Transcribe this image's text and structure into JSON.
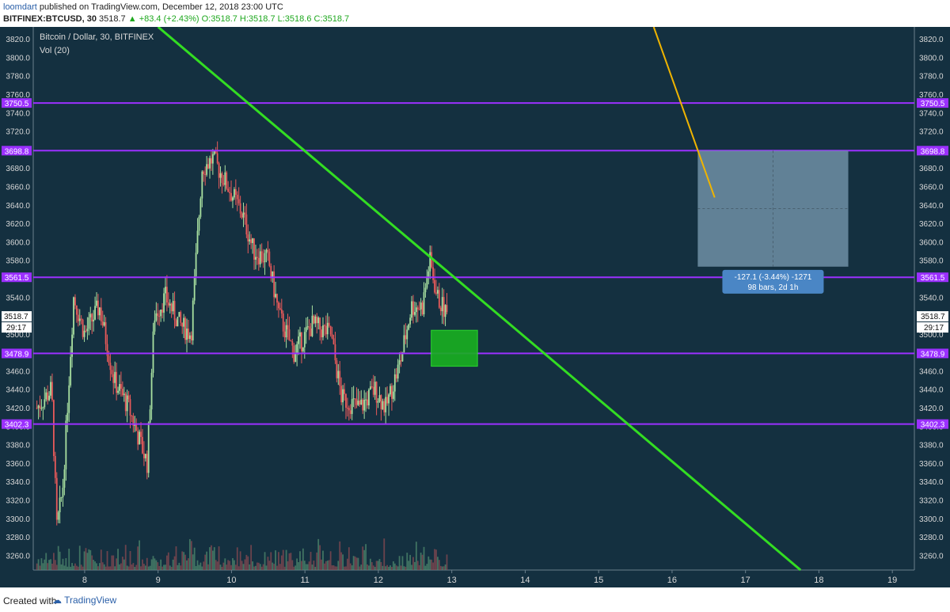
{
  "header": {
    "author": "loomdart",
    "published": "published on TradingView.com, December 12, 2018 23:00 UTC",
    "symbol": "BITFINEX:BTCUSD, 30",
    "last": "3518.7",
    "change": "+83.4 (+2.43%)",
    "ohlc": "O:3518.7 H:3518.7 L:3518.6 C:3518.7"
  },
  "chart_data": {
    "type": "candlestick",
    "title": "Bitcoin / Dollar, 30, BITFINEX",
    "indicator": "Vol (20)",
    "ylim": [
      3244,
      3833
    ],
    "y_ticks": [
      3260,
      3280,
      3300,
      3320,
      3340,
      3360,
      3380,
      3400,
      3420,
      3440,
      3460,
      3480,
      3500,
      3520,
      3540,
      3560,
      3580,
      3600,
      3620,
      3640,
      3660,
      3680,
      3700,
      3720,
      3740,
      3760,
      3780,
      3800,
      3820
    ],
    "x_ticks": [
      "8",
      "9",
      "10",
      "11",
      "12",
      "13",
      "14",
      "15",
      "16",
      "17",
      "18",
      "19"
    ],
    "x_range_days": [
      7.3,
      19.3
    ],
    "grid": false,
    "horizontal_levels": [
      {
        "label": "3750.5",
        "value": 3750.5
      },
      {
        "label": "3698.8",
        "value": 3698.8
      },
      {
        "label": "3561.5",
        "value": 3561.5
      },
      {
        "label": "3478.9",
        "value": 3478.9
      },
      {
        "label": "3402.3",
        "value": 3402.3
      }
    ],
    "trendline": {
      "color": "#33dd22",
      "from": {
        "day": 9.0,
        "price": 3833
      },
      "to": {
        "day": 17.75,
        "price": 3244
      }
    },
    "price_path": [
      {
        "day": 7.35,
        "price": 3420
      },
      {
        "day": 7.55,
        "price": 3440
      },
      {
        "day": 7.62,
        "price": 3290
      },
      {
        "day": 7.7,
        "price": 3330
      },
      {
        "day": 7.85,
        "price": 3540
      },
      {
        "day": 8.0,
        "price": 3500
      },
      {
        "day": 8.2,
        "price": 3530
      },
      {
        "day": 8.4,
        "price": 3450
      },
      {
        "day": 8.6,
        "price": 3420
      },
      {
        "day": 8.85,
        "price": 3360
      },
      {
        "day": 8.95,
        "price": 3520
      },
      {
        "day": 9.1,
        "price": 3540
      },
      {
        "day": 9.3,
        "price": 3510
      },
      {
        "day": 9.45,
        "price": 3500
      },
      {
        "day": 9.6,
        "price": 3680
      },
      {
        "day": 9.75,
        "price": 3690
      },
      {
        "day": 9.95,
        "price": 3660
      },
      {
        "day": 10.15,
        "price": 3630
      },
      {
        "day": 10.3,
        "price": 3590
      },
      {
        "day": 10.5,
        "price": 3580
      },
      {
        "day": 10.65,
        "price": 3520
      },
      {
        "day": 10.85,
        "price": 3480
      },
      {
        "day": 11.1,
        "price": 3510
      },
      {
        "day": 11.35,
        "price": 3500
      },
      {
        "day": 11.5,
        "price": 3430
      },
      {
        "day": 11.75,
        "price": 3420
      },
      {
        "day": 11.95,
        "price": 3440
      },
      {
        "day": 12.1,
        "price": 3420
      },
      {
        "day": 12.3,
        "price": 3470
      },
      {
        "day": 12.45,
        "price": 3530
      },
      {
        "day": 12.6,
        "price": 3530
      },
      {
        "day": 12.7,
        "price": 3580
      },
      {
        "day": 12.8,
        "price": 3540
      },
      {
        "day": 12.95,
        "price": 3518.7
      }
    ],
    "current": {
      "price": "3518.7",
      "countdown": "29:17"
    },
    "measure_box": {
      "from": {
        "day": 16.35,
        "price": 3698.8
      },
      "to": {
        "day": 18.4,
        "price": 3573
      },
      "line1": "-127.1 (-3.44%) -1271",
      "line2": "98 bars, 2d 1h"
    },
    "green_box": {
      "from": {
        "day": 12.72,
        "price": 3504
      },
      "to": {
        "day": 13.35,
        "price": 3465
      }
    },
    "yellow_line": {
      "from": {
        "day": 15.75,
        "price": 3833
      },
      "to": {
        "day": 16.58,
        "price": 3648
      }
    },
    "colors": {
      "background": "#143040",
      "level": "#9b30ff",
      "trend": "#33dd22",
      "up": "#a8e0a0",
      "down": "#e85a5a",
      "axis_text": "#d8d8d8",
      "measure": "#6f8fa6",
      "measure_label": "#4a86c5",
      "yellow": "#f0b400"
    }
  },
  "footer": {
    "created_with": "Created with",
    "brand": "TradingView"
  }
}
